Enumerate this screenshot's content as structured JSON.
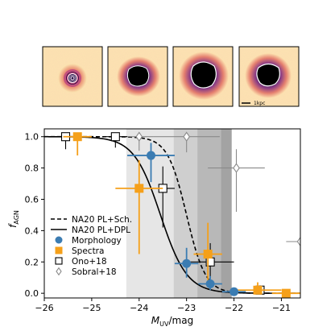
{
  "thumbnails": [
    {
      "id": "thumb-1",
      "scale_label": ""
    },
    {
      "id": "thumb-2",
      "scale_label": ""
    },
    {
      "id": "thumb-3",
      "scale_label": ""
    },
    {
      "id": "thumb-4",
      "scale_label": "1kpc"
    }
  ],
  "chart_data": {
    "type": "scatter",
    "xlabel_main": "M",
    "xlabel_sub": "UV",
    "xlabel_suffix": "/mag",
    "ylabel_main": "f",
    "ylabel_sub": "AGN",
    "xlim": [
      -26,
      -20.6
    ],
    "ylim": [
      -0.03,
      1.05
    ],
    "xticks": [
      -26,
      -25,
      -24,
      -23,
      -22,
      -21
    ],
    "xtick_labels": [
      "−26",
      "−25",
      "−24",
      "−23",
      "−22",
      "−21"
    ],
    "yticks": [
      0.0,
      0.2,
      0.4,
      0.6,
      0.8,
      1.0
    ],
    "ytick_labels": [
      "0.0",
      "0.2",
      "0.4",
      "0.6",
      "0.8",
      "1.0"
    ],
    "shaded_bands": [
      {
        "x0": -24.27,
        "x1": -22.05,
        "color": "#e6e6e6"
      },
      {
        "x0": -23.27,
        "x1": -22.05,
        "color": "#cfcfcf"
      },
      {
        "x0": -22.77,
        "x1": -22.05,
        "color": "#b8b8b8"
      },
      {
        "x0": -22.27,
        "x1": -22.05,
        "color": "#a3a3a3"
      }
    ],
    "curves": [
      {
        "name": "NA20 PL+Sch.",
        "style": "dashed",
        "color": "#000000",
        "m50": -23.0,
        "width": 0.2
      },
      {
        "name": "NA20 PL+DPL",
        "style": "solid",
        "color": "#000000",
        "m50": -23.55,
        "width": 0.28
      }
    ],
    "series": [
      {
        "name": "Morphology",
        "marker": "circle",
        "color": "#3b7cb2",
        "points": [
          {
            "x": -23.75,
            "y": 0.88,
            "xerr": 0.5,
            "yerr_lo": 0.17,
            "yerr_hi": 0.08
          },
          {
            "x": -23.0,
            "y": 0.19,
            "xerr": 0.25,
            "yerr_lo": 0.09,
            "yerr_hi": 0.1
          },
          {
            "x": -22.5,
            "y": 0.06,
            "xerr": 0.25,
            "yerr_lo": 0.04,
            "yerr_hi": 0.05
          },
          {
            "x": -22.0,
            "y": 0.01,
            "xerr": 0.25,
            "yerr_lo": 0.01,
            "yerr_hi": 0.02
          }
        ]
      },
      {
        "name": "Spectra",
        "marker": "square",
        "color": "#f5a01a",
        "points": [
          {
            "x": -25.3,
            "y": 1.0,
            "xerr": 0.3,
            "yerr_lo": 0.12,
            "yerr_hi": 0.0
          },
          {
            "x": -24.0,
            "y": 0.67,
            "xerr": 0.5,
            "yerr_lo": 0.42,
            "yerr_hi": 0.18
          },
          {
            "x": -22.55,
            "y": 0.25,
            "xerr": 0.3,
            "yerr_lo": 0.17,
            "yerr_hi": 0.2
          },
          {
            "x": -21.5,
            "y": 0.02,
            "xerr": 0.5,
            "yerr_lo": 0.02,
            "yerr_hi": 0.05
          },
          {
            "x": -20.9,
            "y": 0.0,
            "xerr": 0.3,
            "yerr_lo": 0.0,
            "yerr_hi": 0.02
          }
        ]
      },
      {
        "name": "Ono+18",
        "marker": "open-square",
        "color": "#000000",
        "points": [
          {
            "x": -25.55,
            "y": 1.0,
            "xerr": 0.25,
            "yerr_lo": 0.08,
            "yerr_hi": 0.0
          },
          {
            "x": -24.5,
            "y": 1.0,
            "xerr": 0.25,
            "yerr_lo": 0.07,
            "yerr_hi": 0.0
          },
          {
            "x": -23.5,
            "y": 0.67,
            "xerr": 0.25,
            "yerr_lo": 0.25,
            "yerr_hi": 0.14
          },
          {
            "x": -22.5,
            "y": 0.2,
            "xerr": 0.5,
            "yerr_lo": 0.15,
            "yerr_hi": 0.12
          },
          {
            "x": -21.45,
            "y": 0.02,
            "xerr": 0.25,
            "yerr_lo": 0.02,
            "yerr_hi": 0.03
          }
        ]
      },
      {
        "name": "Sobral+18",
        "marker": "open-diamond",
        "color": "#8a8a8a",
        "points": [
          {
            "x": -24.0,
            "y": 1.0,
            "xerr": 0.3,
            "yerr_lo": 0.09,
            "yerr_hi": 0.0
          },
          {
            "x": -23.0,
            "y": 1.0,
            "xerr": 0.7,
            "yerr_lo": 0.1,
            "yerr_hi": 0.0
          },
          {
            "x": -21.95,
            "y": 0.8,
            "xerr": 0.6,
            "yerr_lo": 0.28,
            "yerr_hi": 0.12
          },
          {
            "x": -20.6,
            "y": 0.33,
            "xerr": 0.3,
            "yerr_lo": 0.25,
            "yerr_hi": 0.2
          }
        ]
      }
    ],
    "legend": {
      "placement": "lower-left",
      "entries": [
        "NA20 PL+Sch.",
        "NA20 PL+DPL",
        "Morphology",
        "Spectra",
        "Ono+18",
        "Sobral+18"
      ]
    }
  }
}
